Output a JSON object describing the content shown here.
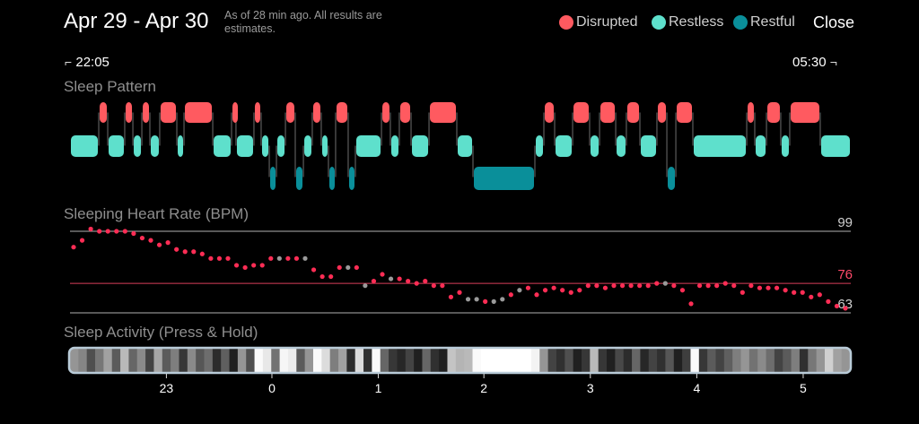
{
  "header": {
    "title": "Apr 29 - Apr 30",
    "as_of": "As of 28 min ago. All results are estimates.",
    "close_label": "Close"
  },
  "legend": [
    {
      "label": "Disrupted",
      "color": "#ff5a60"
    },
    {
      "label": "Restless",
      "color": "#5ee0cc"
    },
    {
      "label": "Restful",
      "color": "#0a8f9a"
    }
  ],
  "time_range": {
    "start": "22:05",
    "end": "05:30"
  },
  "sections": {
    "pattern": "Sleep Pattern",
    "heart_rate": "Sleeping Heart Rate (BPM)",
    "activity": "Sleep Activity (Press & Hold)"
  },
  "heart_rate": {
    "ref_lines": [
      {
        "value": 99,
        "label": "99",
        "color": "#cfcfcf"
      },
      {
        "value": 76,
        "label": "76",
        "color": "#ff4a6a"
      },
      {
        "value": 63,
        "label": "63",
        "color": "#cfcfcf"
      }
    ],
    "point_color": "#ff2d55",
    "gap_color": "#9a9a9a",
    "points": [
      [
        0,
        92,
        1
      ],
      [
        1,
        95,
        1
      ],
      [
        2,
        100,
        1
      ],
      [
        3,
        99,
        1
      ],
      [
        4,
        99,
        1
      ],
      [
        5,
        99,
        1
      ],
      [
        6,
        99,
        1
      ],
      [
        7,
        98,
        1
      ],
      [
        8,
        96,
        1
      ],
      [
        9,
        95,
        1
      ],
      [
        10,
        93,
        1
      ],
      [
        11,
        94,
        1
      ],
      [
        12,
        91,
        1
      ],
      [
        13,
        90,
        1
      ],
      [
        14,
        90,
        1
      ],
      [
        15,
        89,
        1
      ],
      [
        16,
        87,
        1
      ],
      [
        17,
        87,
        1
      ],
      [
        18,
        87,
        1
      ],
      [
        19,
        84,
        1
      ],
      [
        20,
        83,
        1
      ],
      [
        21,
        84,
        1
      ],
      [
        22,
        84,
        1
      ],
      [
        23,
        87,
        1
      ],
      [
        24,
        87,
        0
      ],
      [
        25,
        87,
        1
      ],
      [
        26,
        87,
        1
      ],
      [
        27,
        87,
        0
      ],
      [
        28,
        82,
        1
      ],
      [
        29,
        79,
        1
      ],
      [
        30,
        79,
        1
      ],
      [
        31,
        83,
        1
      ],
      [
        32,
        83,
        0
      ],
      [
        33,
        83,
        1
      ],
      [
        34,
        75,
        0
      ],
      [
        35,
        77,
        1
      ],
      [
        36,
        80,
        1
      ],
      [
        37,
        78,
        0
      ],
      [
        38,
        78,
        1
      ],
      [
        39,
        77,
        1
      ],
      [
        40,
        76,
        1
      ],
      [
        41,
        77,
        1
      ],
      [
        42,
        75,
        1
      ],
      [
        43,
        75,
        1
      ],
      [
        44,
        70,
        1
      ],
      [
        45,
        72,
        1
      ],
      [
        46,
        69,
        0
      ],
      [
        47,
        69,
        0
      ],
      [
        48,
        68,
        1
      ],
      [
        49,
        68,
        0
      ],
      [
        50,
        69,
        0
      ],
      [
        51,
        71,
        1
      ],
      [
        52,
        73,
        0
      ],
      [
        53,
        74,
        1
      ],
      [
        54,
        71,
        1
      ],
      [
        55,
        73,
        1
      ],
      [
        56,
        74,
        1
      ],
      [
        57,
        73,
        1
      ],
      [
        58,
        72,
        1
      ],
      [
        59,
        73,
        1
      ],
      [
        60,
        75,
        1
      ],
      [
        61,
        75,
        1
      ],
      [
        62,
        74,
        1
      ],
      [
        63,
        75,
        1
      ],
      [
        64,
        75,
        1
      ],
      [
        65,
        75,
        1
      ],
      [
        66,
        75,
        1
      ],
      [
        67,
        75,
        1
      ],
      [
        68,
        76,
        1
      ],
      [
        69,
        76,
        0
      ],
      [
        70,
        75,
        1
      ],
      [
        71,
        73,
        1
      ],
      [
        72,
        67,
        1
      ],
      [
        73,
        75,
        1
      ],
      [
        74,
        75,
        1
      ],
      [
        75,
        75,
        1
      ],
      [
        76,
        76,
        1
      ],
      [
        77,
        75,
        1
      ],
      [
        78,
        72,
        1
      ],
      [
        79,
        75,
        1
      ],
      [
        80,
        74,
        1
      ],
      [
        81,
        74,
        1
      ],
      [
        82,
        74,
        1
      ],
      [
        83,
        73,
        1
      ],
      [
        84,
        72,
        1
      ],
      [
        85,
        72,
        1
      ],
      [
        86,
        70,
        1
      ],
      [
        87,
        71,
        1
      ],
      [
        88,
        68,
        1
      ],
      [
        89,
        66,
        1
      ],
      [
        90,
        65,
        1
      ]
    ]
  },
  "x_axis": {
    "ticks": [
      {
        "label": "23",
        "pos": 0.1236
      },
      {
        "label": "0",
        "pos": 0.2589
      },
      {
        "label": "1",
        "pos": 0.3953
      },
      {
        "label": "2",
        "pos": 0.5307
      },
      {
        "label": "3",
        "pos": 0.6672
      },
      {
        "label": "4",
        "pos": 0.8037
      },
      {
        "label": "5",
        "pos": 0.9401
      }
    ]
  },
  "pattern_segments": [
    {
      "s": "t",
      "a": 0.0,
      "b": 0.0368
    },
    {
      "s": "d",
      "a": 0.0368,
      "b": 0.0483
    },
    {
      "s": "t",
      "a": 0.0483,
      "b": 0.0701
    },
    {
      "s": "d",
      "a": 0.0701,
      "b": 0.0805
    },
    {
      "s": "t",
      "a": 0.0805,
      "b": 0.092
    },
    {
      "s": "d",
      "a": 0.092,
      "b": 0.1023
    },
    {
      "s": "t",
      "a": 0.1023,
      "b": 0.1149
    },
    {
      "s": "d",
      "a": 0.1149,
      "b": 0.1368
    },
    {
      "s": "t",
      "a": 0.1368,
      "b": 0.146
    },
    {
      "s": "d",
      "a": 0.146,
      "b": 0.1828
    },
    {
      "s": "t",
      "a": 0.1828,
      "b": 0.2069
    },
    {
      "s": "d",
      "a": 0.2069,
      "b": 0.2126
    },
    {
      "s": "t",
      "a": 0.2126,
      "b": 0.2356
    },
    {
      "s": "d",
      "a": 0.2356,
      "b": 0.2448
    },
    {
      "s": "t",
      "a": 0.2448,
      "b": 0.2552
    },
    {
      "s": "r",
      "a": 0.2552,
      "b": 0.2644
    },
    {
      "s": "t",
      "a": 0.2644,
      "b": 0.2759
    },
    {
      "s": "d",
      "a": 0.2759,
      "b": 0.2885
    },
    {
      "s": "r",
      "a": 0.2885,
      "b": 0.2989
    },
    {
      "s": "t",
      "a": 0.2989,
      "b": 0.3103
    },
    {
      "s": "d",
      "a": 0.3103,
      "b": 0.3218
    },
    {
      "s": "t",
      "a": 0.3218,
      "b": 0.331
    },
    {
      "s": "r",
      "a": 0.331,
      "b": 0.3402
    },
    {
      "s": "d",
      "a": 0.3402,
      "b": 0.3563
    },
    {
      "s": "r",
      "a": 0.3563,
      "b": 0.3655
    },
    {
      "s": "t",
      "a": 0.3655,
      "b": 0.3989
    },
    {
      "s": "d",
      "a": 0.3989,
      "b": 0.4103
    },
    {
      "s": "t",
      "a": 0.4103,
      "b": 0.4218
    },
    {
      "s": "d",
      "a": 0.4218,
      "b": 0.4368
    },
    {
      "s": "t",
      "a": 0.4368,
      "b": 0.4598
    },
    {
      "s": "d",
      "a": 0.4598,
      "b": 0.4954
    },
    {
      "s": "t",
      "a": 0.4954,
      "b": 0.5161
    },
    {
      "s": "r",
      "a": 0.5161,
      "b": 0.5954
    },
    {
      "s": "t",
      "a": 0.5954,
      "b": 0.6069
    },
    {
      "s": "d",
      "a": 0.6069,
      "b": 0.6207
    },
    {
      "s": "t",
      "a": 0.6207,
      "b": 0.6437
    },
    {
      "s": "d",
      "a": 0.6437,
      "b": 0.6655
    },
    {
      "s": "t",
      "a": 0.6655,
      "b": 0.6782
    },
    {
      "s": "d",
      "a": 0.6782,
      "b": 0.6989
    },
    {
      "s": "t",
      "a": 0.6989,
      "b": 0.7126
    },
    {
      "s": "d",
      "a": 0.7126,
      "b": 0.7299
    },
    {
      "s": "t",
      "a": 0.7299,
      "b": 0.7517
    },
    {
      "s": "d",
      "a": 0.7517,
      "b": 0.7644
    },
    {
      "s": "r",
      "a": 0.7644,
      "b": 0.7759
    },
    {
      "s": "d",
      "a": 0.7759,
      "b": 0.7977
    },
    {
      "s": "t",
      "a": 0.7977,
      "b": 0.8667
    },
    {
      "s": "d",
      "a": 0.8667,
      "b": 0.877
    },
    {
      "s": "t",
      "a": 0.877,
      "b": 0.892
    },
    {
      "s": "d",
      "a": 0.892,
      "b": 0.9103
    },
    {
      "s": "t",
      "a": 0.9103,
      "b": 0.9218
    },
    {
      "s": "d",
      "a": 0.9218,
      "b": 0.9609
    },
    {
      "s": "t",
      "a": 0.9609,
      "b": 1.0
    }
  ],
  "activity_bars": [
    0.55,
    0.48,
    0.25,
    0.42,
    0.6,
    0.3,
    0.7,
    0.35,
    0.5,
    0.2,
    0.62,
    0.3,
    0.45,
    0.15,
    0.5,
    0.28,
    0.38,
    0.1,
    0.32,
    0.05,
    0.55,
    0.25,
    0.98,
    0.9,
    0.4,
    0.96,
    0.92,
    0.3,
    0.55,
    0.98,
    0.85,
    0.45,
    0.6,
    0.1,
    0.85,
    0.12,
    0.98,
    0.35,
    0.15,
    0.08,
    0.2,
    0.05,
    0.35,
    0.12,
    0.05,
    0.75,
    0.68,
    0.7,
    0.98,
    1.0,
    1.0,
    1.0,
    1.0,
    1.0,
    1.0,
    0.95,
    0.55,
    0.2,
    0.12,
    0.25,
    0.05,
    0.15,
    0.7,
    0.15,
    0.05,
    0.22,
    0.1,
    0.35,
    0.08,
    0.2,
    0.12,
    0.28,
    0.05,
    0.18,
    0.98,
    0.15,
    0.3,
    0.2,
    0.32,
    0.45,
    0.55,
    0.4,
    0.5,
    0.38,
    0.2,
    0.3,
    0.45,
    0.12,
    0.42,
    0.55,
    0.8,
    0.6,
    0.55
  ]
}
